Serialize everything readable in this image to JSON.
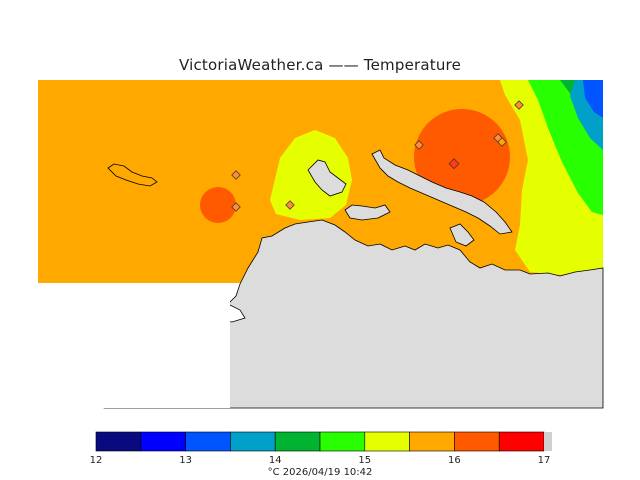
{
  "header": {
    "title": "VictoriaWeather.ca  —— Temperature"
  },
  "colorbar": {
    "unit": "°C",
    "timestamp": "2026/04/19 10:42",
    "ticks": [
      "12",
      "13",
      "14",
      "15",
      "16",
      "17"
    ],
    "bins": [
      {
        "color": "#0a0a80"
      },
      {
        "color": "#0000ff"
      },
      {
        "color": "#0055ff"
      },
      {
        "color": "#00a0c8"
      },
      {
        "color": "#00b432"
      },
      {
        "color": "#28ff00"
      },
      {
        "color": "#e6ff00"
      },
      {
        "color": "#ffa800"
      },
      {
        "color": "#ff5a00"
      },
      {
        "color": "#ff0000"
      }
    ]
  },
  "map": {
    "land_color": "#dcdcdc",
    "coast_color": "#000000",
    "stations_count_visible": 8
  }
}
